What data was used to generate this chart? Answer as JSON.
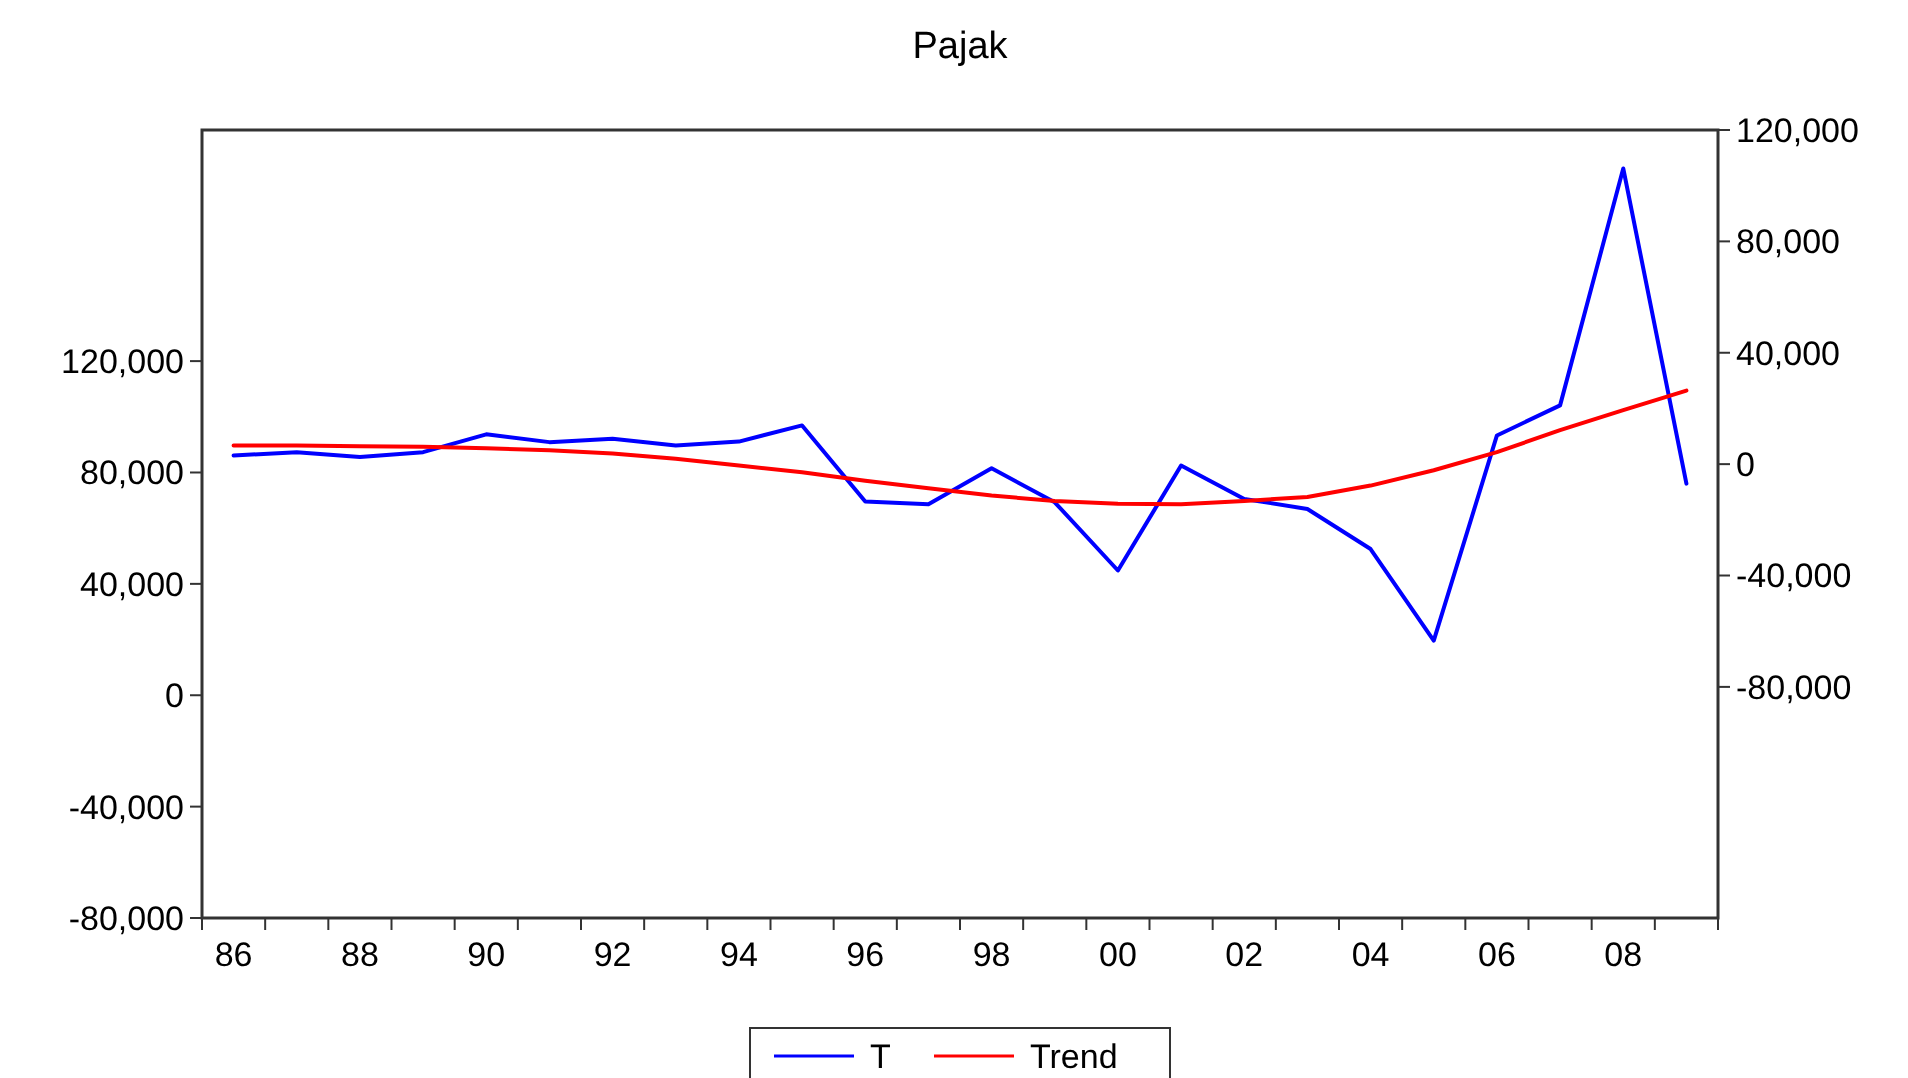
{
  "chart_data": {
    "type": "line",
    "title": "Pajak",
    "categories": [
      "86",
      null,
      "88",
      null,
      "90",
      null,
      "92",
      null,
      "94",
      null,
      "96",
      null,
      "98",
      null,
      "00",
      null,
      "02",
      null,
      "04",
      null,
      "06",
      null,
      "08",
      null
    ],
    "series": [
      {
        "name": "T",
        "color": "#0000ff",
        "values": [
          86100,
          87300,
          85600,
          87300,
          93700,
          90900,
          92100,
          89700,
          91100,
          96900,
          69600,
          68600,
          81500,
          69300,
          44800,
          82500,
          70500,
          66900,
          52500,
          19600,
          93300,
          104100,
          189200,
          76000
        ]
      },
      {
        "name": "Trend",
        "color": "#ff0000",
        "values": [
          89700,
          89700,
          89400,
          89200,
          88700,
          88000,
          86800,
          84900,
          82500,
          80100,
          77000,
          74300,
          71700,
          69800,
          68800,
          68600,
          69800,
          71200,
          75300,
          80800,
          87300,
          95200,
          102400,
          109400
        ]
      }
    ],
    "ylim": [
      -80000,
      203000
    ],
    "yticks": [
      {
        "value": -80000,
        "label": "-80,000"
      },
      {
        "value": -40000,
        "label": "-40,000"
      },
      {
        "value": 0,
        "label": "0"
      },
      {
        "value": 40000,
        "label": "40,000"
      },
      {
        "value": 80000,
        "label": "80,000"
      },
      {
        "value": 120000,
        "label": "120,000"
      }
    ],
    "y2lim": [
      -163000,
      120000
    ],
    "y2ticks": [
      {
        "value": -80000,
        "label": "-80,000"
      },
      {
        "value": -40000,
        "label": "-40,000"
      },
      {
        "value": 0,
        "label": "0"
      },
      {
        "value": 40000,
        "label": "40,000"
      },
      {
        "value": 80000,
        "label": "80,000"
      },
      {
        "value": 120000,
        "label": "120,000"
      }
    ],
    "grid": false,
    "legend": "bottom",
    "marker": "none",
    "line_style": "solid"
  }
}
